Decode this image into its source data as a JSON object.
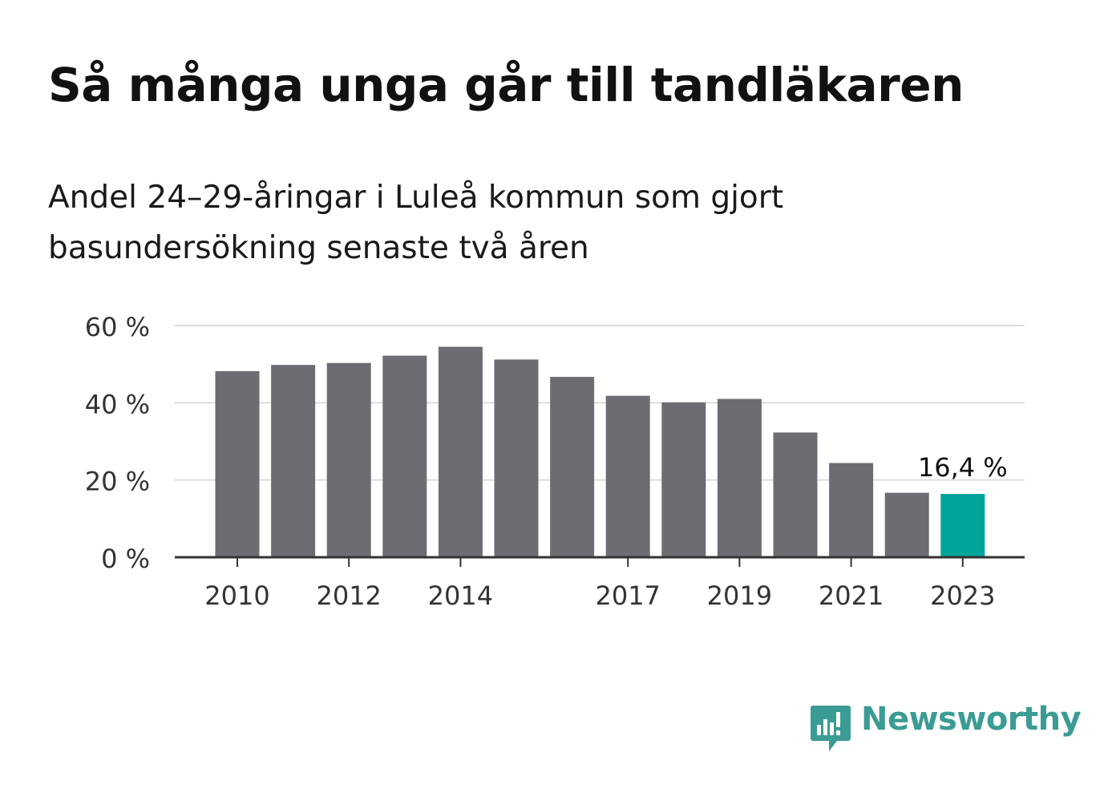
{
  "title": "Så många unga går till tandläkaren",
  "subtitle": "Andel 24–29-åringar i Luleå kommun som gjort basundersökning senaste två åren",
  "brand": {
    "name": "Newsworthy",
    "color": "#3a9c94"
  },
  "colors": {
    "bar": "#6d6c72",
    "highlight": "#00a49a",
    "grid": "#dddddd",
    "axis": "#333333",
    "text": "#333333"
  },
  "chart_data": {
    "type": "bar",
    "categories": [
      "2010",
      "2011",
      "2012",
      "2013",
      "2014",
      "2015",
      "2016",
      "2017",
      "2018",
      "2019",
      "2020",
      "2021",
      "2022",
      "2023"
    ],
    "values": [
      48.2,
      49.8,
      50.3,
      52.2,
      54.5,
      51.2,
      46.7,
      41.8,
      40.1,
      41.0,
      32.3,
      24.4,
      16.7,
      16.4
    ],
    "highlight_index": 13,
    "highlight_label": "16,4 %",
    "x_tick_labels": [
      "2010",
      "2012",
      "2014",
      "2017",
      "2019",
      "2021",
      "2023"
    ],
    "y_ticks": [
      0,
      20,
      40,
      60
    ],
    "y_tick_labels": [
      "0 %",
      "20 %",
      "40 %",
      "60 %"
    ],
    "ylim": [
      0,
      60
    ],
    "grid": true,
    "legend": "none"
  }
}
